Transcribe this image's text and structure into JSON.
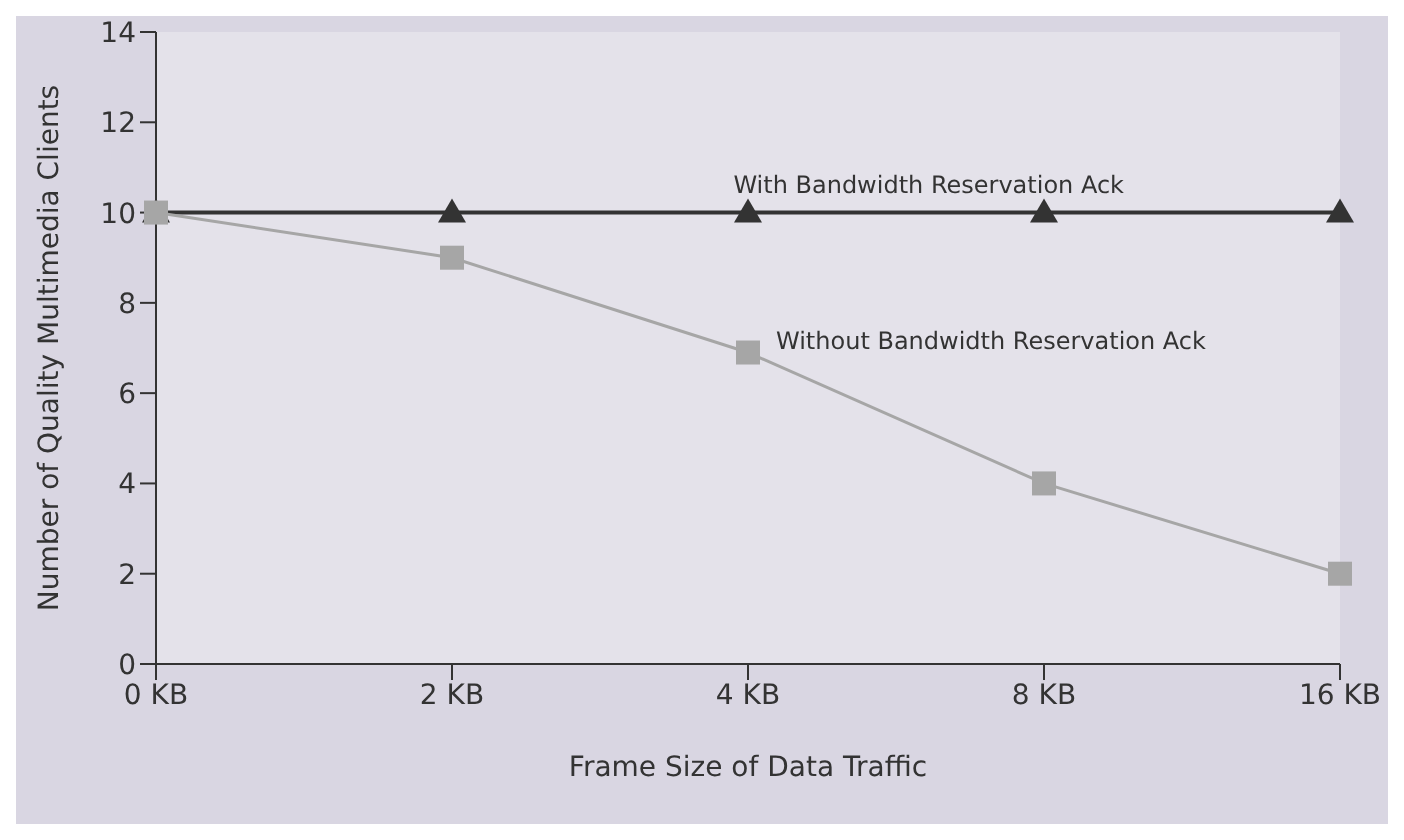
{
  "chart_data": {
    "type": "line",
    "xlabel": "Frame Size of Data Traffic",
    "ylabel": "Number of Quality Multimedia Clients",
    "categories": [
      "0 KB",
      "2 KB",
      "4 KB",
      "8 KB",
      "16 KB"
    ],
    "ylim": [
      0,
      14
    ],
    "yticks": [
      0,
      2,
      4,
      6,
      8,
      10,
      12,
      14
    ],
    "grid": false,
    "legend": false,
    "series": [
      {
        "name": "With Bandwidth Reservation Ack",
        "color": "#333333",
        "marker": "triangle",
        "values": [
          10,
          10,
          10,
          10,
          10
        ]
      },
      {
        "name": "Without Bandwidth Reservation Ack",
        "color": "#a6a6a6",
        "marker": "square",
        "values": [
          10,
          9,
          6.9,
          4,
          2
        ]
      }
    ]
  }
}
